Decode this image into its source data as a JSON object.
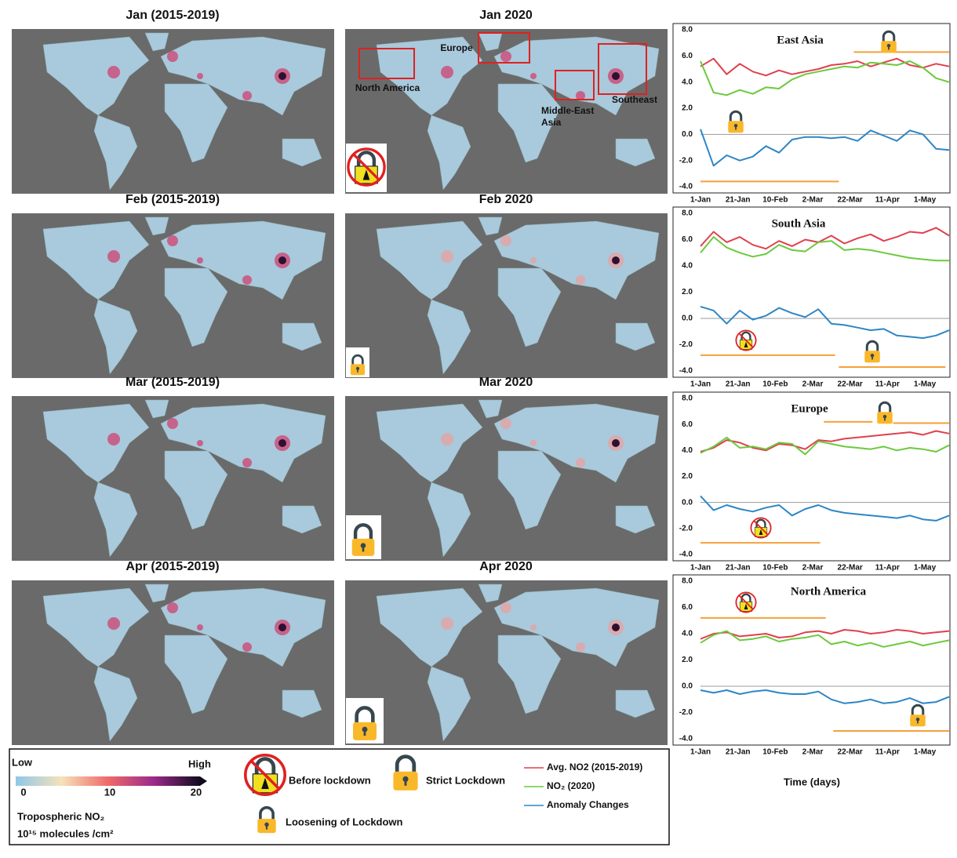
{
  "maps": [
    {
      "title": "Jan (2015-2019)"
    },
    {
      "title": "Jan 2020"
    },
    {
      "title": "Feb (2015-2019)"
    },
    {
      "title": "Feb 2020"
    },
    {
      "title": "Mar (2015-2019)"
    },
    {
      "title": "Mar 2020"
    },
    {
      "title": "Apr (2015-2019)"
    },
    {
      "title": "Apr 2020"
    }
  ],
  "map_labels": [
    "North America",
    "Europe",
    "Middle-East",
    "Asia",
    "Southeast"
  ],
  "legend": {
    "low": "Low",
    "high": "High",
    "colorbar": {
      "lim": [
        0,
        20
      ],
      "ticks": [
        0,
        10,
        20
      ]
    },
    "quantity": "Tropospheric NO₂",
    "unit": "10¹⁵ molecules /cm²",
    "before": "Before lockdown",
    "strict": "Strict Lockdown",
    "loosening": "Loosening of Lockdown"
  },
  "xlabel": "Time (days)",
  "chart_data": [
    {
      "type": "line",
      "title": "East Asia",
      "x": [
        0,
        7,
        14,
        21,
        28,
        35,
        42,
        49,
        56,
        63,
        70,
        77,
        84,
        91,
        98,
        105,
        112,
        119,
        126,
        133
      ],
      "xlim": [
        0,
        133
      ],
      "xticks": [
        {
          "value": 0,
          "label": "1-Jan"
        },
        {
          "value": 20,
          "label": "21-Jan"
        },
        {
          "value": 40,
          "label": "10-Feb"
        },
        {
          "value": 60,
          "label": "2-Mar"
        },
        {
          "value": 80,
          "label": "22-Mar"
        },
        {
          "value": 100,
          "label": "11-Apr"
        },
        {
          "value": 120,
          "label": "1-May"
        }
      ],
      "ylim": [
        -4,
        8
      ],
      "yticks": [
        {
          "value": 8,
          "label": "8.0"
        },
        {
          "value": 6,
          "label": "6.0"
        },
        {
          "value": 4,
          "label": "4.0"
        },
        {
          "value": 2,
          "label": "2.0"
        },
        {
          "value": 0,
          "label": "0.0"
        },
        {
          "value": -2,
          "label": "-2.0"
        },
        {
          "value": -4,
          "label": "-4.0"
        }
      ],
      "series": [
        {
          "name": "Avg. NO2 (2015-2019)",
          "color": "#e0404f",
          "values": [
            5.2,
            5.8,
            4.6,
            5.4,
            4.8,
            4.5,
            4.9,
            4.6,
            4.8,
            5.0,
            5.3,
            5.4,
            5.6,
            5.2,
            5.5,
            5.8,
            5.3,
            5.1,
            5.4,
            5.2
          ]
        },
        {
          "name": "NO₂ (2020)",
          "color": "#6cc93d",
          "values": [
            5.6,
            3.2,
            3.0,
            3.4,
            3.1,
            3.6,
            3.5,
            4.2,
            4.6,
            4.8,
            5.0,
            5.2,
            5.1,
            5.5,
            5.4,
            5.3,
            5.6,
            5.1,
            4.3,
            4.0
          ]
        },
        {
          "name": "Anomaly Changes",
          "color": "#2d86c6",
          "values": [
            0.4,
            -2.4,
            -1.6,
            -2.0,
            -1.7,
            -0.9,
            -1.4,
            -0.4,
            -0.2,
            -0.2,
            -0.3,
            -0.2,
            -0.5,
            0.3,
            -0.1,
            -0.5,
            0.3,
            0.0,
            -1.1,
            -1.2
          ]
        }
      ],
      "period_color": "#f5a03a",
      "periods": [
        {
          "x": [
            0,
            74
          ],
          "y": -3.6
        },
        {
          "x": [
            82,
            133
          ],
          "y": 6.3
        }
      ]
    },
    {
      "type": "line",
      "title": "South Asia",
      "x": [
        0,
        7,
        14,
        21,
        28,
        35,
        42,
        49,
        56,
        63,
        70,
        77,
        84,
        91,
        98,
        105,
        112,
        119,
        126,
        133
      ],
      "xlim": [
        0,
        133
      ],
      "xticks": [
        {
          "value": 0,
          "label": "1-Jan"
        },
        {
          "value": 20,
          "label": "21-Jan"
        },
        {
          "value": 40,
          "label": "10-Feb"
        },
        {
          "value": 60,
          "label": "2-Mar"
        },
        {
          "value": 80,
          "label": "22-Mar"
        },
        {
          "value": 100,
          "label": "11-Apr"
        },
        {
          "value": 120,
          "label": "1-May"
        }
      ],
      "ylim": [
        -4,
        8
      ],
      "yticks": [
        {
          "value": 8,
          "label": "8.0"
        },
        {
          "value": 6,
          "label": "6.0"
        },
        {
          "value": 4,
          "label": "4.0"
        },
        {
          "value": 2,
          "label": "2.0"
        },
        {
          "value": 0,
          "label": "0.0"
        },
        {
          "value": -2,
          "label": "-2.0"
        },
        {
          "value": -4,
          "label": "-4.0"
        }
      ],
      "series": [
        {
          "name": "Avg. NO2 (2015-2019)",
          "color": "#e0404f",
          "values": [
            5.5,
            6.6,
            5.8,
            6.2,
            5.6,
            5.3,
            5.9,
            5.5,
            6.0,
            5.8,
            6.3,
            5.7,
            6.1,
            6.4,
            5.9,
            6.2,
            6.6,
            6.5,
            6.9,
            6.3
          ]
        },
        {
          "name": "NO₂ (2020)",
          "color": "#6cc93d",
          "values": [
            5.0,
            6.2,
            5.4,
            5.0,
            4.7,
            4.9,
            5.6,
            5.2,
            5.1,
            5.8,
            5.9,
            5.2,
            5.3,
            5.2,
            5.0,
            4.8,
            4.6,
            4.5,
            4.4,
            4.4
          ]
        },
        {
          "name": "Anomaly Changes",
          "color": "#2d86c6",
          "values": [
            0.9,
            0.6,
            -0.4,
            0.6,
            -0.1,
            0.2,
            0.8,
            0.4,
            0.1,
            0.7,
            -0.4,
            -0.5,
            -0.7,
            -0.9,
            -0.8,
            -1.3,
            -1.4,
            -1.5,
            -1.3,
            -0.9
          ]
        }
      ],
      "period_color": "#f5a03a",
      "periods": [
        {
          "x": [
            0,
            72
          ],
          "y": -2.8
        },
        {
          "x": [
            74,
            131
          ],
          "y": -3.7
        }
      ]
    },
    {
      "type": "line",
      "title": "Europe",
      "x": [
        0,
        7,
        14,
        21,
        28,
        35,
        42,
        49,
        56,
        63,
        70,
        77,
        84,
        91,
        98,
        105,
        112,
        119,
        126,
        133
      ],
      "xlim": [
        0,
        133
      ],
      "xticks": [
        {
          "value": 0,
          "label": "1-Jan"
        },
        {
          "value": 20,
          "label": "21-Jan"
        },
        {
          "value": 40,
          "label": "10-Feb"
        },
        {
          "value": 60,
          "label": "2-Mar"
        },
        {
          "value": 80,
          "label": "22-Mar"
        },
        {
          "value": 100,
          "label": "11-Apr"
        },
        {
          "value": 120,
          "label": "1-May"
        }
      ],
      "ylim": [
        -4,
        8
      ],
      "yticks": [
        {
          "value": 8,
          "label": "8.0"
        },
        {
          "value": 6,
          "label": "6.0"
        },
        {
          "value": 4,
          "label": "4.0"
        },
        {
          "value": 2,
          "label": "2.0"
        },
        {
          "value": 0,
          "label": "0.0"
        },
        {
          "value": -2,
          "label": "-2.0"
        },
        {
          "value": -4,
          "label": "-4.0"
        }
      ],
      "series": [
        {
          "name": "Avg. NO2 (2015-2019)",
          "color": "#e0404f",
          "values": [
            3.9,
            4.2,
            4.8,
            4.6,
            4.2,
            4.0,
            4.5,
            4.4,
            4.1,
            4.8,
            4.7,
            4.9,
            5.0,
            5.1,
            5.2,
            5.3,
            5.4,
            5.2,
            5.5,
            5.3
          ]
        },
        {
          "name": "NO₂ (2020)",
          "color": "#6cc93d",
          "values": [
            3.8,
            4.3,
            5.0,
            4.2,
            4.3,
            4.1,
            4.6,
            4.5,
            3.7,
            4.7,
            4.5,
            4.3,
            4.2,
            4.1,
            4.3,
            4.0,
            4.2,
            4.1,
            3.9,
            4.4
          ]
        },
        {
          "name": "Anomaly Changes",
          "color": "#2d86c6",
          "values": [
            0.5,
            -0.6,
            -0.2,
            -0.5,
            -0.7,
            -0.4,
            -0.2,
            -1.0,
            -0.5,
            -0.2,
            -0.6,
            -0.8,
            -0.9,
            -1.0,
            -1.1,
            -1.2,
            -1.0,
            -1.3,
            -1.4,
            -1.0
          ]
        }
      ],
      "period_color": "#f5a03a",
      "periods": [
        {
          "x": [
            0,
            64
          ],
          "y": -3.1
        },
        {
          "x": [
            66,
            92
          ],
          "y": 6.2
        },
        {
          "x": [
            103,
            133
          ],
          "y": 6.1
        }
      ]
    },
    {
      "type": "line",
      "title": "North America",
      "x": [
        0,
        7,
        14,
        21,
        28,
        35,
        42,
        49,
        56,
        63,
        70,
        77,
        84,
        91,
        98,
        105,
        112,
        119,
        126,
        133
      ],
      "xlim": [
        0,
        133
      ],
      "xticks": [
        {
          "value": 0,
          "label": "1-Jan"
        },
        {
          "value": 20,
          "label": "21-Jan"
        },
        {
          "value": 40,
          "label": "10-Feb"
        },
        {
          "value": 60,
          "label": "2-Mar"
        },
        {
          "value": 80,
          "label": "22-Mar"
        },
        {
          "value": 100,
          "label": "11-Apr"
        },
        {
          "value": 120,
          "label": "1-May"
        }
      ],
      "ylim": [
        -4,
        8
      ],
      "yticks": [
        {
          "value": 8,
          "label": "8.0"
        },
        {
          "value": 6,
          "label": "6.0"
        },
        {
          "value": 4,
          "label": "4.0"
        },
        {
          "value": 2,
          "label": "2.0"
        },
        {
          "value": 0,
          "label": "0.0"
        },
        {
          "value": -2,
          "label": "-2.0"
        },
        {
          "value": -4,
          "label": "-4.0"
        }
      ],
      "series": [
        {
          "name": "Avg. NO2 (2015-2019)",
          "color": "#e0404f",
          "values": [
            3.6,
            4.0,
            4.1,
            3.8,
            3.9,
            4.0,
            3.7,
            3.8,
            4.1,
            4.2,
            4.0,
            4.3,
            4.2,
            4.0,
            4.1,
            4.3,
            4.2,
            4.0,
            4.1,
            4.2
          ]
        },
        {
          "name": "NO₂ (2020)",
          "color": "#6cc93d",
          "values": [
            3.3,
            3.9,
            4.2,
            3.5,
            3.6,
            3.8,
            3.4,
            3.6,
            3.7,
            3.9,
            3.2,
            3.4,
            3.1,
            3.3,
            3.0,
            3.2,
            3.4,
            3.1,
            3.3,
            3.5
          ]
        },
        {
          "name": "Anomaly Changes",
          "color": "#2d86c6",
          "values": [
            -0.3,
            -0.5,
            -0.3,
            -0.6,
            -0.4,
            -0.3,
            -0.5,
            -0.6,
            -0.6,
            -0.4,
            -1.0,
            -1.3,
            -1.2,
            -1.0,
            -1.3,
            -1.2,
            -0.9,
            -1.3,
            -1.2,
            -0.8
          ]
        }
      ],
      "period_color": "#f5a03a",
      "periods": [
        {
          "x": [
            0,
            67
          ],
          "y": 5.2
        },
        {
          "x": [
            71,
            133
          ],
          "y": -3.4
        }
      ]
    }
  ]
}
